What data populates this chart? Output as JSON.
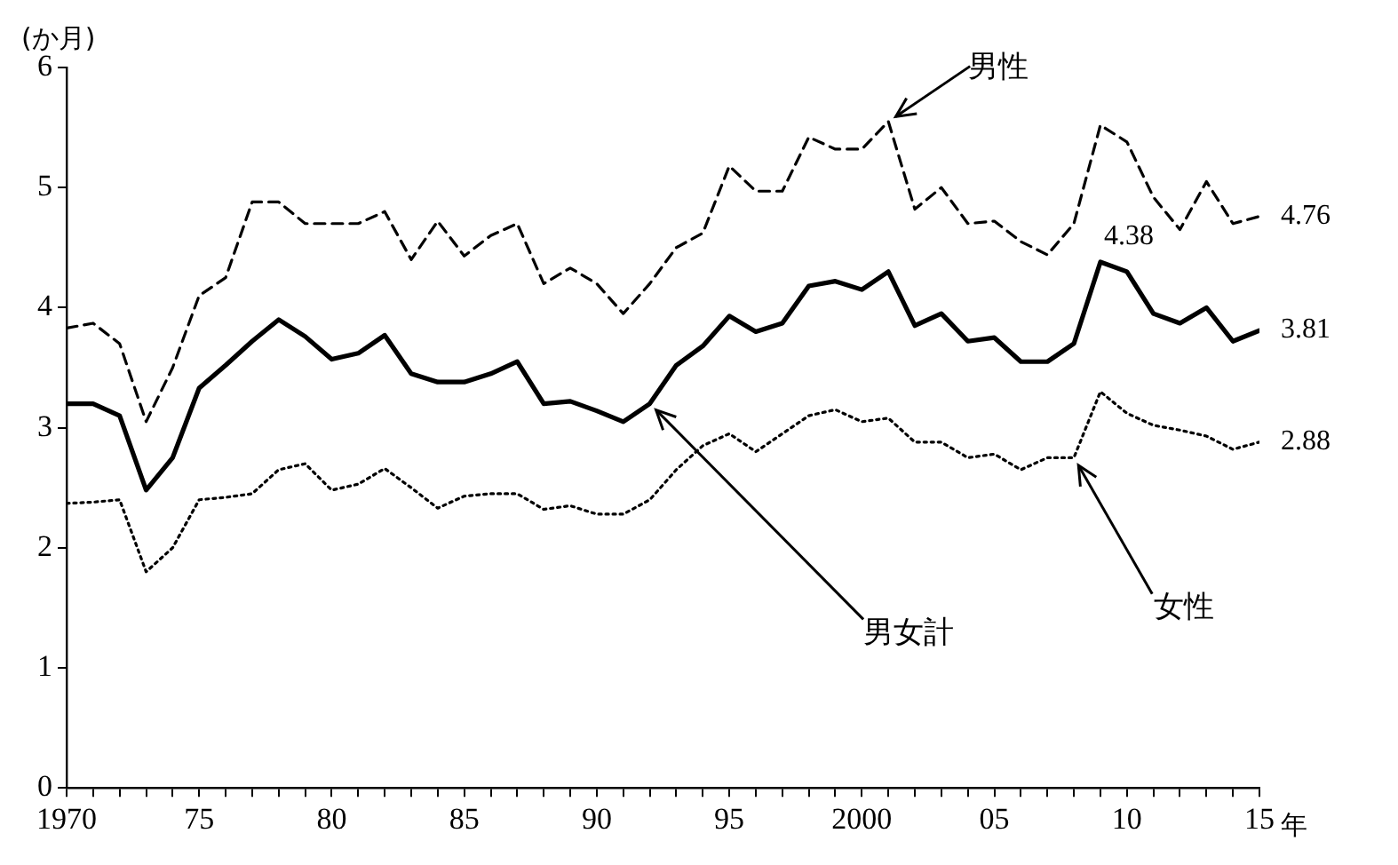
{
  "chart_data": {
    "type": "line",
    "xlabel": "年",
    "ylabel": "(か月)",
    "x": [
      1970,
      1971,
      1972,
      1973,
      1974,
      1975,
      1976,
      1977,
      1978,
      1979,
      1980,
      1981,
      1982,
      1983,
      1984,
      1985,
      1986,
      1987,
      1988,
      1989,
      1990,
      1991,
      1992,
      1993,
      1994,
      1995,
      1996,
      1997,
      1998,
      1999,
      2000,
      2001,
      2002,
      2003,
      2004,
      2005,
      2006,
      2007,
      2008,
      2009,
      2010,
      2011,
      2012,
      2013,
      2014,
      2015
    ],
    "series": [
      {
        "name": "男性",
        "color": "#000000",
        "line_style": "dashed",
        "values": [
          3.83,
          3.87,
          3.7,
          3.05,
          3.5,
          4.1,
          4.25,
          4.88,
          4.88,
          4.7,
          4.7,
          4.7,
          4.8,
          4.4,
          4.72,
          4.43,
          4.6,
          4.7,
          4.2,
          4.33,
          4.2,
          3.95,
          4.2,
          4.5,
          4.62,
          5.18,
          4.97,
          4.97,
          5.42,
          5.32,
          5.32,
          5.55,
          4.82,
          5.0,
          4.7,
          4.72,
          4.55,
          4.44,
          4.7,
          5.52,
          5.38,
          4.92,
          4.65,
          5.05,
          4.7,
          4.76
        ],
        "value_labels": [
          null,
          null,
          null,
          null,
          null,
          null,
          null,
          null,
          null,
          null,
          null,
          null,
          null,
          null,
          null,
          null,
          null,
          null,
          null,
          null,
          null,
          null,
          null,
          null,
          null,
          null,
          null,
          null,
          null,
          null,
          null,
          null,
          null,
          null,
          null,
          null,
          null,
          null,
          null,
          null,
          null,
          null,
          null,
          null,
          null,
          "4.76"
        ]
      },
      {
        "name": "男女計",
        "color": "#000000",
        "line_style": "solid",
        "values": [
          3.2,
          3.2,
          3.1,
          2.48,
          2.75,
          3.33,
          3.52,
          3.72,
          3.9,
          3.76,
          3.57,
          3.62,
          3.77,
          3.45,
          3.38,
          3.38,
          3.45,
          3.55,
          3.2,
          3.22,
          3.14,
          3.05,
          3.2,
          3.52,
          3.68,
          3.93,
          3.8,
          3.87,
          4.18,
          4.22,
          4.15,
          4.3,
          3.85,
          3.95,
          3.72,
          3.75,
          3.55,
          3.55,
          3.7,
          4.38,
          4.3,
          3.95,
          3.87,
          4.0,
          3.72,
          3.81
        ],
        "value_labels": [
          null,
          null,
          null,
          null,
          null,
          null,
          null,
          null,
          null,
          null,
          null,
          null,
          null,
          null,
          null,
          null,
          null,
          null,
          null,
          null,
          null,
          null,
          null,
          null,
          null,
          null,
          null,
          null,
          null,
          null,
          null,
          null,
          null,
          null,
          null,
          null,
          null,
          null,
          null,
          "4.38",
          null,
          null,
          null,
          null,
          null,
          "3.81"
        ]
      },
      {
        "name": "女性",
        "color": "#000000",
        "line_style": "dotted",
        "values": [
          2.37,
          2.38,
          2.4,
          1.8,
          2.0,
          2.4,
          2.42,
          2.45,
          2.65,
          2.7,
          2.48,
          2.53,
          2.66,
          2.5,
          2.33,
          2.43,
          2.45,
          2.45,
          2.32,
          2.35,
          2.28,
          2.28,
          2.4,
          2.65,
          2.85,
          2.95,
          2.8,
          2.95,
          3.1,
          3.15,
          3.05,
          3.08,
          2.88,
          2.88,
          2.75,
          2.78,
          2.65,
          2.75,
          2.75,
          3.3,
          3.12,
          3.02,
          2.98,
          2.93,
          2.82,
          2.88
        ],
        "value_labels": [
          null,
          null,
          null,
          null,
          null,
          null,
          null,
          null,
          null,
          null,
          null,
          null,
          null,
          null,
          null,
          null,
          null,
          null,
          null,
          null,
          null,
          null,
          null,
          null,
          null,
          null,
          null,
          null,
          null,
          null,
          null,
          null,
          null,
          null,
          null,
          null,
          null,
          null,
          null,
          null,
          null,
          null,
          null,
          null,
          null,
          "2.88"
        ]
      }
    ],
    "xlim": [
      1970,
      2015
    ],
    "xticks": [
      {
        "value": 1970,
        "label": "1970"
      },
      {
        "value": 1971,
        "label": null
      },
      {
        "value": 1972,
        "label": null
      },
      {
        "value": 1973,
        "label": null
      },
      {
        "value": 1974,
        "label": null
      },
      {
        "value": 1975,
        "label": "75"
      },
      {
        "value": 1976,
        "label": null
      },
      {
        "value": 1977,
        "label": null
      },
      {
        "value": 1978,
        "label": null
      },
      {
        "value": 1979,
        "label": null
      },
      {
        "value": 1980,
        "label": "80"
      },
      {
        "value": 1981,
        "label": null
      },
      {
        "value": 1982,
        "label": null
      },
      {
        "value": 1983,
        "label": null
      },
      {
        "value": 1984,
        "label": null
      },
      {
        "value": 1985,
        "label": "85"
      },
      {
        "value": 1986,
        "label": null
      },
      {
        "value": 1987,
        "label": null
      },
      {
        "value": 1988,
        "label": null
      },
      {
        "value": 1989,
        "label": null
      },
      {
        "value": 1990,
        "label": "90"
      },
      {
        "value": 1991,
        "label": null
      },
      {
        "value": 1992,
        "label": null
      },
      {
        "value": 1993,
        "label": null
      },
      {
        "value": 1994,
        "label": null
      },
      {
        "value": 1995,
        "label": "95"
      },
      {
        "value": 1996,
        "label": null
      },
      {
        "value": 1997,
        "label": null
      },
      {
        "value": 1998,
        "label": null
      },
      {
        "value": 1999,
        "label": null
      },
      {
        "value": 2000,
        "label": "2000"
      },
      {
        "value": 2001,
        "label": null
      },
      {
        "value": 2002,
        "label": null
      },
      {
        "value": 2003,
        "label": null
      },
      {
        "value": 2004,
        "label": null
      },
      {
        "value": 2005,
        "label": "05"
      },
      {
        "value": 2006,
        "label": null
      },
      {
        "value": 2007,
        "label": null
      },
      {
        "value": 2008,
        "label": null
      },
      {
        "value": 2009,
        "label": null
      },
      {
        "value": 2010,
        "label": "10"
      },
      {
        "value": 2011,
        "label": null
      },
      {
        "value": 2012,
        "label": null
      },
      {
        "value": 2013,
        "label": null
      },
      {
        "value": 2014,
        "label": null
      },
      {
        "value": 2015,
        "label": "15"
      }
    ],
    "ylim": [
      0,
      6
    ],
    "yticks": [
      0,
      1,
      2,
      3,
      4,
      5,
      6
    ],
    "grid": false,
    "legend": false,
    "marker": "none"
  }
}
